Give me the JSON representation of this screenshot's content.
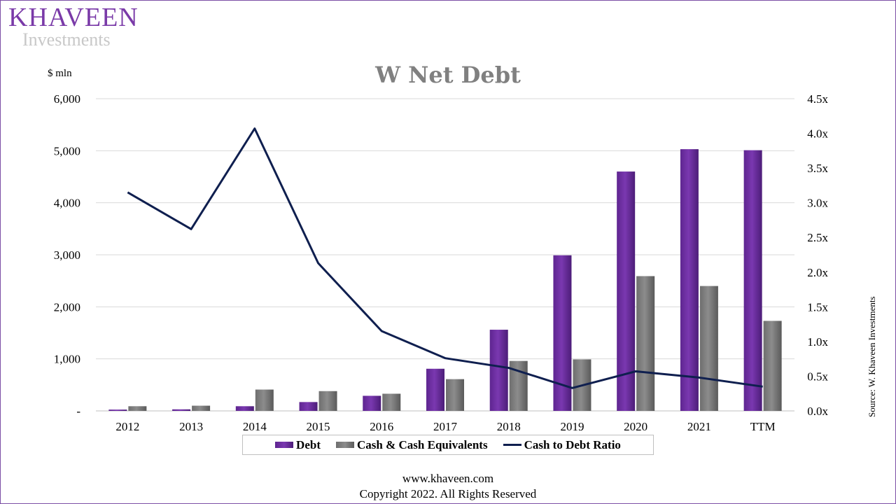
{
  "brand": {
    "name": "KHAVEEN",
    "sub": "Investments"
  },
  "source_note": "Source: W. Khaveen Investments",
  "footer": {
    "website": "www.khaveen.com",
    "copyright": "Copyright 2022. All Rights Reserved"
  },
  "colors": {
    "debt": "#7a38b0",
    "cash": "#8c8c8c",
    "ratio": "#0f1f4f",
    "grid": "#d9d9d9"
  },
  "chart_data": {
    "type": "bar",
    "title": "W Net Debt",
    "ylabel": "$ mln",
    "xlabel": "",
    "categories": [
      "2012",
      "2013",
      "2014",
      "2015",
      "2016",
      "2017",
      "2018",
      "2019",
      "2020",
      "2021",
      "TTM"
    ],
    "ylim": [
      0,
      6000
    ],
    "y_ticks": [
      "-",
      "1,000",
      "2,000",
      "3,000",
      "4,000",
      "5,000",
      "6,000"
    ],
    "y2lim": [
      0,
      4.5
    ],
    "y2_ticks": [
      "0.0x",
      "0.5x",
      "1.0x",
      "1.5x",
      "2.0x",
      "2.5x",
      "3.0x",
      "3.5x",
      "4.0x",
      "4.5x"
    ],
    "grid": true,
    "legend_position": "bottom",
    "series": [
      {
        "name": "Debt",
        "type": "bar",
        "axis": "left",
        "values": [
          25,
          30,
          90,
          170,
          290,
          810,
          1560,
          2990,
          4600,
          5030,
          5010
        ]
      },
      {
        "name": "Cash & Cash Equivalents",
        "type": "bar",
        "axis": "left",
        "values": [
          90,
          100,
          410,
          380,
          330,
          610,
          960,
          990,
          2590,
          2400,
          1730
        ]
      },
      {
        "name": "Cash to Debt Ratio",
        "type": "line",
        "axis": "right",
        "values": [
          3.15,
          2.62,
          4.07,
          2.13,
          1.15,
          0.76,
          0.62,
          0.33,
          0.57,
          0.48,
          0.35
        ]
      }
    ]
  }
}
